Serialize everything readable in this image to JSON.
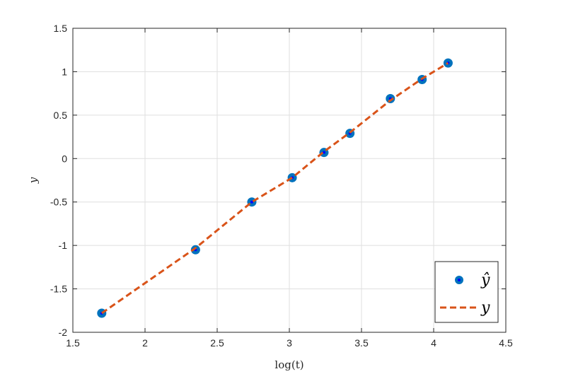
{
  "chart_data": {
    "type": "scatter",
    "xlabel": "log(t)",
    "ylabel": "y",
    "xlim": [
      1.5,
      4.5
    ],
    "ylim": [
      -2,
      1.5
    ],
    "xticks": [
      1.5,
      2,
      2.5,
      3,
      3.5,
      4,
      4.5
    ],
    "yticks": [
      -2,
      -1.5,
      -1,
      -0.5,
      0,
      0.5,
      1,
      1.5
    ],
    "xtick_labels": [
      "1.5",
      "2",
      "2.5",
      "3",
      "3.5",
      "4",
      "4.5"
    ],
    "ytick_labels": [
      "-2",
      "-1.5",
      "-1",
      "-0.5",
      "0",
      "0.5",
      "1",
      "1.5"
    ],
    "grid": true,
    "legend_position": "bottom-right",
    "series": [
      {
        "name": "ŷ",
        "kind": "markers",
        "color": "#0072BD",
        "center_color": "#0000FF",
        "x": [
          1.7,
          2.35,
          2.74,
          3.02,
          3.24,
          3.42,
          3.7,
          3.92,
          4.1
        ],
        "y": [
          -1.78,
          -1.05,
          -0.5,
          -0.22,
          0.07,
          0.29,
          0.69,
          0.91,
          1.1
        ]
      },
      {
        "name": "y",
        "kind": "dashed-line",
        "color": "#D95319",
        "x": [
          1.7,
          2.35,
          2.74,
          3.02,
          3.24,
          3.42,
          3.7,
          3.92,
          4.1
        ],
        "y": [
          -1.78,
          -1.03,
          -0.5,
          -0.22,
          0.08,
          0.3,
          0.67,
          0.92,
          1.1
        ]
      }
    ]
  }
}
